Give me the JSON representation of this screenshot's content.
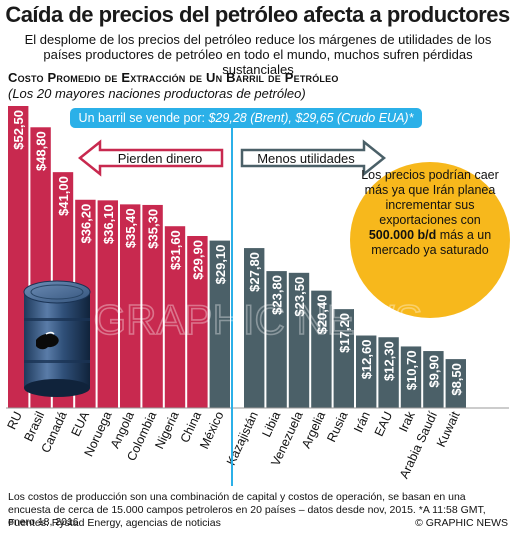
{
  "header": {
    "title": "Caída de precios del petróleo afecta a productores",
    "subtitle": "El desplome de los precios del petróleo reduce los márgenes de utilidades de los países productores de petróleo en todo el mundo, muchos sufren pérdidas sustanciales"
  },
  "price_box": {
    "prefix": "Un barril se vende por: ",
    "brent": "$29,28 (Brent), $29,65 (Crudo EUA)*"
  },
  "arrows": {
    "left_label": "Pierden dinero",
    "right_label": "Menos utilidades"
  },
  "callout": {
    "text_before": "Los precios podrían caer más ya que Irán planea incrementar sus exportaciones con",
    "highlight": "500.000 b/d",
    "text_after": "más a un mercado ya saturado"
  },
  "watermark": "GRAPHIC NEWS",
  "footnote": "Los costos de producción son una combinación de capital y costos de operación, se basan en una encuesta de cerca de 15.000 campos petroleros en 20 países – datos desde nov, 2015.   *A 11:58 GMT, enero 18, 2016",
  "sources": "Fuentes: Rystad Energy, agencias de noticias",
  "copyright": "© GRAPHIC NEWS",
  "colors": {
    "loss_bar": "#c8294f",
    "profit_bar": "#4b6068",
    "price_line": "#2bb0e8",
    "callout_fill": "#f7b81c",
    "arrow_left": "#c8294f",
    "arrow_right": "#4b6068"
  },
  "chart_data": {
    "type": "bar",
    "title": "Costo Promedio de Extracción de Un Barril de Petróleo",
    "subtitle": "(Los 20 mayores naciones productoras de petróleo)",
    "categories": [
      "RU",
      "Brasil",
      "Canadá",
      "EUA",
      "Noruega",
      "Angola",
      "Colombia",
      "Nigeria",
      "China",
      "México",
      "Kazajistán",
      "Libia",
      "Venezuela",
      "Argelia",
      "Rusia",
      "Irán",
      "EAU",
      "Irak",
      "Arabia Saudí",
      "Kuwait"
    ],
    "values": [
      52.5,
      48.8,
      41.0,
      36.2,
      36.1,
      35.4,
      35.3,
      31.6,
      29.9,
      29.1,
      27.8,
      23.8,
      23.5,
      20.4,
      17.2,
      12.6,
      12.3,
      10.7,
      9.9,
      8.5
    ],
    "labels": [
      "$52,50",
      "$48,80",
      "$41,00",
      "$36,20",
      "$36,10",
      "$35,40",
      "$35,30",
      "$31,60",
      "$29,90",
      "$29,10",
      "$27,80",
      "$23,80",
      "$23,50",
      "$20,40",
      "$17,20",
      "$12,60",
      "$12,30",
      "$10,70",
      "$9,90",
      "$8,50"
    ],
    "reference_price": 29.28,
    "ylim": [
      0,
      52.5
    ]
  }
}
